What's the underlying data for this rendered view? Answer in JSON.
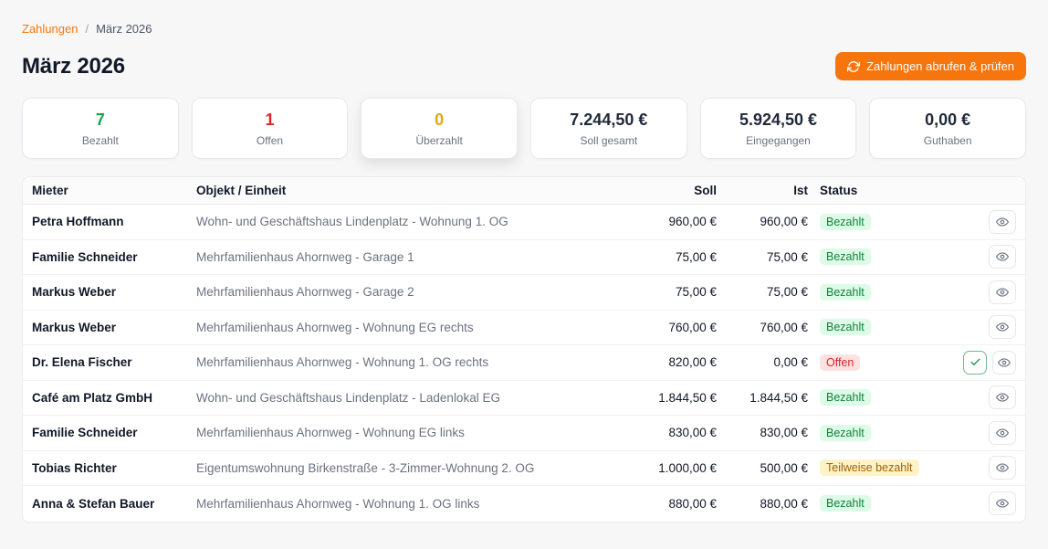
{
  "breadcrumb": {
    "root": "Zahlungen",
    "separator": "/",
    "current": "März 2026"
  },
  "page": {
    "title": "März 2026"
  },
  "toolbar": {
    "fetch_button_label": "Zahlungen abrufen & prüfen"
  },
  "summary_cards": [
    {
      "value": "7",
      "label": "Bezahlt",
      "color": "#16a34a",
      "elevated": false
    },
    {
      "value": "1",
      "label": "Offen",
      "color": "#dc2626",
      "elevated": false
    },
    {
      "value": "0",
      "label": "Überzahlt",
      "color": "#e0a80c",
      "elevated": true
    },
    {
      "value": "7.244,50 €",
      "label": "Soll gesamt",
      "color": "#1f2937",
      "elevated": false
    },
    {
      "value": "5.924,50 €",
      "label": "Eingegangen",
      "color": "#1f2937",
      "elevated": false
    },
    {
      "value": "0,00 €",
      "label": "Guthaben",
      "color": "#1f2937",
      "elevated": false
    }
  ],
  "table": {
    "columns": {
      "tenant": "Mieter",
      "unit": "Objekt / Einheit",
      "soll": "Soll",
      "ist": "Ist",
      "status": "Status"
    },
    "rows": [
      {
        "tenant": "Petra Hoffmann",
        "unit": "Wohn- und Geschäftshaus Lindenplatz - Wohnung 1. OG",
        "soll": "960,00 €",
        "ist": "960,00 €",
        "status": "Bezahlt",
        "status_type": "paid",
        "actions": [
          "view"
        ]
      },
      {
        "tenant": "Familie Schneider",
        "unit": "Mehrfamilienhaus Ahornweg - Garage 1",
        "soll": "75,00 €",
        "ist": "75,00 €",
        "status": "Bezahlt",
        "status_type": "paid",
        "actions": [
          "view"
        ]
      },
      {
        "tenant": "Markus Weber",
        "unit": "Mehrfamilienhaus Ahornweg - Garage 2",
        "soll": "75,00 €",
        "ist": "75,00 €",
        "status": "Bezahlt",
        "status_type": "paid",
        "actions": [
          "view"
        ]
      },
      {
        "tenant": "Markus Weber",
        "unit": "Mehrfamilienhaus Ahornweg - Wohnung EG rechts",
        "soll": "760,00 €",
        "ist": "760,00 €",
        "status": "Bezahlt",
        "status_type": "paid",
        "actions": [
          "view"
        ]
      },
      {
        "tenant": "Dr. Elena Fischer",
        "unit": "Mehrfamilienhaus Ahornweg - Wohnung 1. OG rechts",
        "soll": "820,00 €",
        "ist": "0,00 €",
        "status": "Offen",
        "status_type": "open",
        "actions": [
          "confirm",
          "view"
        ]
      },
      {
        "tenant": "Café am Platz GmbH",
        "unit": "Wohn- und Geschäftshaus Lindenplatz - Ladenlokal EG",
        "soll": "1.844,50 €",
        "ist": "1.844,50 €",
        "status": "Bezahlt",
        "status_type": "paid",
        "actions": [
          "view"
        ]
      },
      {
        "tenant": "Familie Schneider",
        "unit": "Mehrfamilienhaus Ahornweg - Wohnung EG links",
        "soll": "830,00 €",
        "ist": "830,00 €",
        "status": "Bezahlt",
        "status_type": "paid",
        "actions": [
          "view"
        ]
      },
      {
        "tenant": "Tobias Richter",
        "unit": "Eigentumswohnung Birkenstraße - 3-Zimmer-Wohnung 2. OG",
        "soll": "1.000,00 €",
        "ist": "500,00 €",
        "status": "Teilweise bezahlt",
        "status_type": "partial",
        "actions": [
          "view"
        ]
      },
      {
        "tenant": "Anna & Stefan Bauer",
        "unit": "Mehrfamilienhaus Ahornweg - Wohnung 1. OG links",
        "soll": "880,00 €",
        "ist": "880,00 €",
        "status": "Bezahlt",
        "status_type": "paid",
        "actions": [
          "view"
        ]
      }
    ]
  },
  "icons": {
    "refresh": "refresh-icon",
    "eye": "eye-icon",
    "check": "check-icon"
  },
  "colors": {
    "accent_orange": "#f7750d",
    "status_paid_bg": "#dcfce7",
    "status_paid_text": "#15803d",
    "status_open_bg": "#fee2e2",
    "status_open_text": "#dc2626",
    "status_partial_bg": "#fef3c7",
    "status_partial_text": "#a16207",
    "page_bg": "#f7f7f8"
  }
}
